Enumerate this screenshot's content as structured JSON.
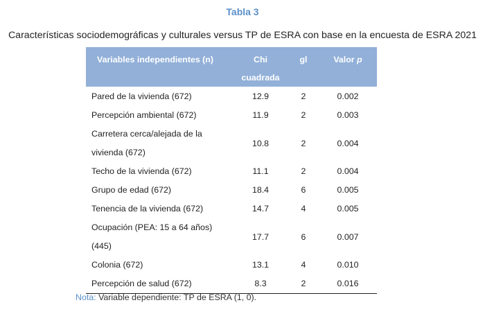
{
  "table_label": "Tabla 3",
  "caption": "Características sociodemográficas y culturales versus TP de ESRA con base en la encuesta de ESRA 2021",
  "headers": {
    "variables": "Variables independientes (n)",
    "chi": "Chi cuadrada",
    "gl": "gl",
    "valor_prefix": "Valor ",
    "valor_p": "p"
  },
  "rows": [
    {
      "variable": "Pared de la vivienda (672)",
      "chi": "12.9",
      "gl": "2",
      "p": "0.002"
    },
    {
      "variable": "Percepción ambiental (672)",
      "chi": "11.9",
      "gl": "2",
      "p": "0.003"
    },
    {
      "variable": "Carretera cerca/alejada de la vivienda (672)",
      "chi": "10.8",
      "gl": "2",
      "p": "0.004"
    },
    {
      "variable": "Techo de la vivienda (672)",
      "chi": "11.1",
      "gl": "2",
      "p": "0.004"
    },
    {
      "variable": "Grupo de edad (672)",
      "chi": "18.4",
      "gl": "6",
      "p": "0.005"
    },
    {
      "variable": "Tenencia de la vivienda (672)",
      "chi": "14.7",
      "gl": "4",
      "p": "0.005"
    },
    {
      "variable": "Ocupación (PEA: 15 a 64 años) (445)",
      "chi": "17.7",
      "gl": "6",
      "p": "0.007"
    },
    {
      "variable": "Colonia (672)",
      "chi": "13.1",
      "gl": "4",
      "p": "0.010"
    },
    {
      "variable": "Percepción de salud (672)",
      "chi": "8.3",
      "gl": "2",
      "p": "0.016"
    }
  ],
  "note": {
    "label": "Nota:",
    "text": " Variable dependiente: TP de ESRA (1, 0)."
  }
}
